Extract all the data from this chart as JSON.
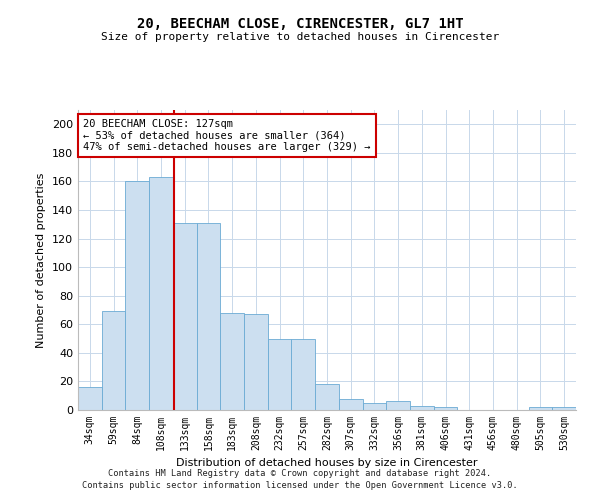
{
  "title": "20, BEECHAM CLOSE, CIRENCESTER, GL7 1HT",
  "subtitle": "Size of property relative to detached houses in Cirencester",
  "xlabel": "Distribution of detached houses by size in Cirencester",
  "ylabel": "Number of detached properties",
  "bar_color": "#ccdff0",
  "bar_edge_color": "#6aaad4",
  "vline_color": "#cc0000",
  "annotation_text": "20 BEECHAM CLOSE: 127sqm\n← 53% of detached houses are smaller (364)\n47% of semi-detached houses are larger (329) →",
  "annotation_box_color": "#ffffff",
  "annotation_box_edge": "#cc0000",
  "categories": [
    "34sqm",
    "59sqm",
    "84sqm",
    "108sqm",
    "133sqm",
    "158sqm",
    "183sqm",
    "208sqm",
    "232sqm",
    "257sqm",
    "282sqm",
    "307sqm",
    "332sqm",
    "356sqm",
    "381sqm",
    "406sqm",
    "431sqm",
    "456sqm",
    "480sqm",
    "505sqm",
    "530sqm"
  ],
  "values": [
    16,
    69,
    160,
    163,
    131,
    131,
    68,
    67,
    50,
    50,
    18,
    8,
    5,
    6,
    3,
    2,
    0,
    0,
    0,
    2,
    2
  ],
  "ylim": [
    0,
    210
  ],
  "yticks": [
    0,
    20,
    40,
    60,
    80,
    100,
    120,
    140,
    160,
    180,
    200
  ],
  "vline_pos": 3.55,
  "footer_line1": "Contains HM Land Registry data © Crown copyright and database right 2024.",
  "footer_line2": "Contains public sector information licensed under the Open Government Licence v3.0.",
  "background_color": "#ffffff",
  "grid_color": "#c8d8ea"
}
